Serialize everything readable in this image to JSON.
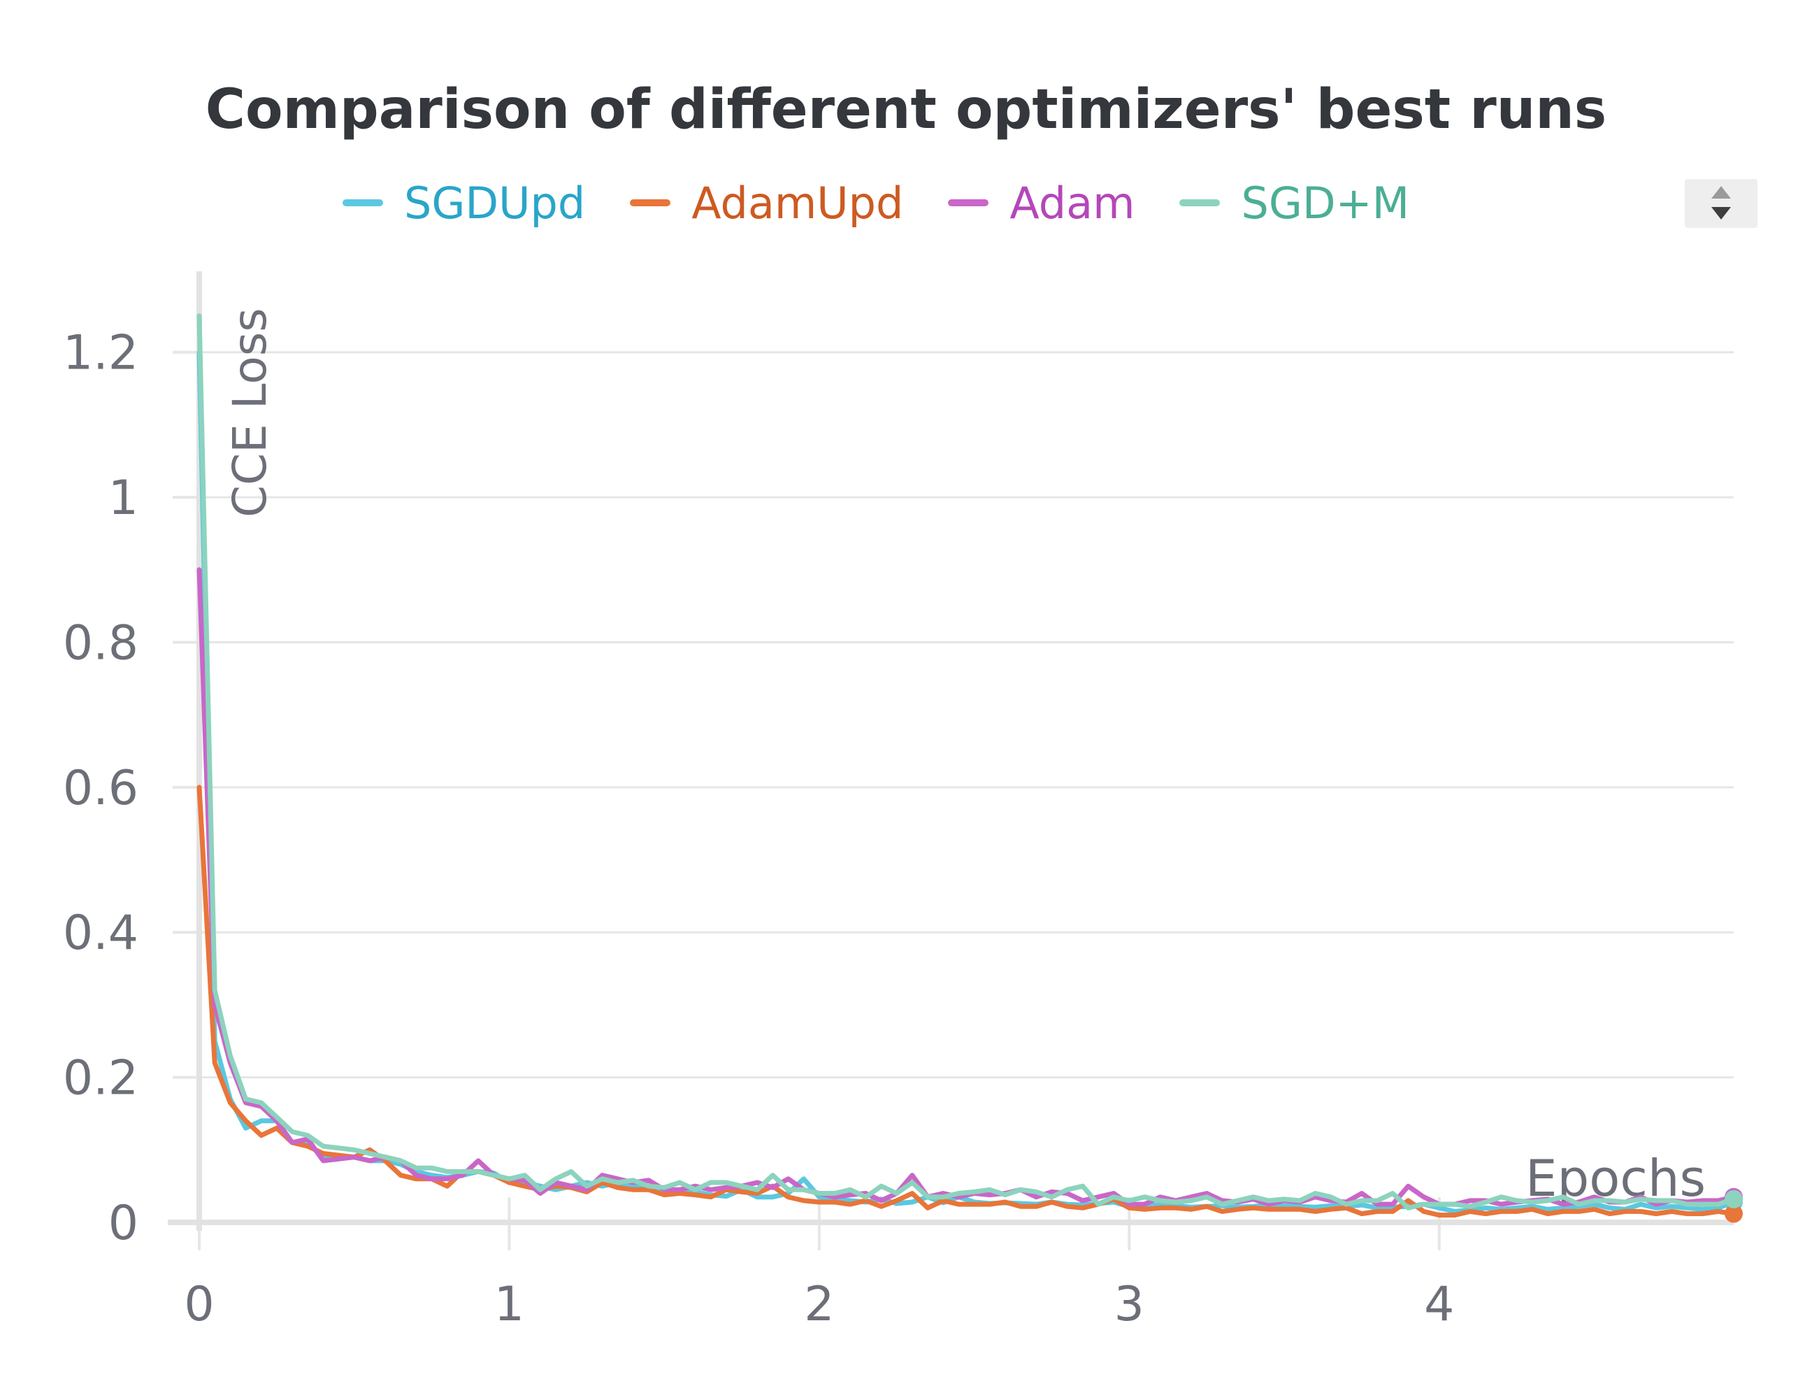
{
  "chart_data": {
    "type": "line",
    "title": "Comparison of different optimizers' best runs",
    "xlabel": "Epochs",
    "ylabel": "CCE Loss",
    "xlim": [
      0,
      4.95
    ],
    "ylim": [
      0,
      1.3
    ],
    "x_ticks": [
      "0",
      "1",
      "2",
      "3",
      "4"
    ],
    "y_ticks": [
      "0",
      "0.2",
      "0.4",
      "0.6",
      "0.8",
      "1",
      "1.2"
    ],
    "grid": true,
    "legend_position": "top",
    "x": [
      0.0,
      0.05,
      0.1,
      0.15,
      0.2,
      0.25,
      0.3,
      0.35,
      0.4,
      0.5,
      0.55,
      0.6,
      0.65,
      0.7,
      0.75,
      0.8,
      0.85,
      0.9,
      0.95,
      1.0,
      1.05,
      1.1,
      1.15,
      1.2,
      1.25,
      1.3,
      1.35,
      1.4,
      1.45,
      1.5,
      1.55,
      1.6,
      1.65,
      1.7,
      1.75,
      1.8,
      1.85,
      1.9,
      1.95,
      2.0,
      2.05,
      2.1,
      2.15,
      2.2,
      2.25,
      2.3,
      2.35,
      2.4,
      2.45,
      2.5,
      2.55,
      2.6,
      2.65,
      2.7,
      2.75,
      2.8,
      2.85,
      2.9,
      2.95,
      3.0,
      3.05,
      3.1,
      3.15,
      3.2,
      3.25,
      3.3,
      3.35,
      3.4,
      3.45,
      3.5,
      3.55,
      3.6,
      3.65,
      3.7,
      3.75,
      3.8,
      3.85,
      3.9,
      3.95,
      4.0,
      4.05,
      4.1,
      4.15,
      4.2,
      4.25,
      4.3,
      4.35,
      4.4,
      4.45,
      4.5,
      4.55,
      4.6,
      4.65,
      4.7,
      4.75,
      4.8,
      4.85,
      4.9,
      4.95
    ],
    "series": [
      {
        "name": "SGDUpd",
        "color": "#5bc8e0",
        "label_color": "#29a5c9",
        "values": [
          1.2,
          0.25,
          0.17,
          0.13,
          0.14,
          0.14,
          0.11,
          0.11,
          0.09,
          0.09,
          0.085,
          0.085,
          0.08,
          0.07,
          0.065,
          0.062,
          0.065,
          0.07,
          0.068,
          0.055,
          0.055,
          0.05,
          0.045,
          0.05,
          0.055,
          0.05,
          0.055,
          0.05,
          0.048,
          0.045,
          0.04,
          0.042,
          0.038,
          0.036,
          0.045,
          0.035,
          0.035,
          0.04,
          0.06,
          0.035,
          0.032,
          0.03,
          0.028,
          0.032,
          0.026,
          0.028,
          0.035,
          0.027,
          0.035,
          0.028,
          0.026,
          0.027,
          0.026,
          0.025,
          0.028,
          0.025,
          0.024,
          0.026,
          0.028,
          0.022,
          0.022,
          0.025,
          0.023,
          0.021,
          0.022,
          0.023,
          0.021,
          0.022,
          0.024,
          0.023,
          0.022,
          0.021,
          0.023,
          0.022,
          0.024,
          0.02,
          0.021,
          0.022,
          0.025,
          0.02,
          0.015,
          0.017,
          0.02,
          0.018,
          0.02,
          0.022,
          0.018,
          0.02,
          0.022,
          0.025,
          0.02,
          0.018,
          0.025,
          0.02,
          0.022,
          0.02,
          0.018,
          0.02,
          0.028
        ]
      },
      {
        "name": "AdamUpd",
        "color": "#e87539",
        "label_color": "#cd5a22",
        "values": [
          0.6,
          0.22,
          0.165,
          0.14,
          0.12,
          0.13,
          0.11,
          0.105,
          0.095,
          0.09,
          0.1,
          0.085,
          0.065,
          0.06,
          0.06,
          0.05,
          0.07,
          0.07,
          0.065,
          0.055,
          0.05,
          0.045,
          0.05,
          0.048,
          0.042,
          0.055,
          0.048,
          0.045,
          0.045,
          0.038,
          0.04,
          0.038,
          0.035,
          0.045,
          0.042,
          0.04,
          0.05,
          0.035,
          0.03,
          0.028,
          0.028,
          0.025,
          0.03,
          0.022,
          0.03,
          0.04,
          0.02,
          0.03,
          0.025,
          0.025,
          0.025,
          0.028,
          0.022,
          0.022,
          0.028,
          0.022,
          0.02,
          0.025,
          0.032,
          0.02,
          0.018,
          0.02,
          0.02,
          0.018,
          0.022,
          0.015,
          0.018,
          0.02,
          0.018,
          0.018,
          0.018,
          0.015,
          0.018,
          0.02,
          0.012,
          0.015,
          0.015,
          0.03,
          0.015,
          0.01,
          0.01,
          0.015,
          0.012,
          0.015,
          0.015,
          0.018,
          0.012,
          0.015,
          0.015,
          0.018,
          0.012,
          0.015,
          0.015,
          0.012,
          0.015,
          0.012,
          0.012,
          0.015,
          0.012
        ]
      },
      {
        "name": "Adam",
        "color": "#c966c9",
        "label_color": "#b447b9",
        "values": [
          0.9,
          0.3,
          0.22,
          0.165,
          0.16,
          0.14,
          0.11,
          0.115,
          0.085,
          0.09,
          0.085,
          0.09,
          0.085,
          0.065,
          0.06,
          0.06,
          0.065,
          0.085,
          0.065,
          0.06,
          0.058,
          0.04,
          0.055,
          0.05,
          0.045,
          0.065,
          0.06,
          0.055,
          0.058,
          0.045,
          0.045,
          0.05,
          0.045,
          0.048,
          0.05,
          0.055,
          0.048,
          0.06,
          0.045,
          0.04,
          0.035,
          0.038,
          0.04,
          0.03,
          0.04,
          0.065,
          0.035,
          0.04,
          0.035,
          0.04,
          0.038,
          0.04,
          0.045,
          0.035,
          0.042,
          0.04,
          0.03,
          0.035,
          0.04,
          0.025,
          0.025,
          0.035,
          0.03,
          0.035,
          0.04,
          0.03,
          0.028,
          0.032,
          0.025,
          0.03,
          0.028,
          0.035,
          0.03,
          0.028,
          0.04,
          0.025,
          0.025,
          0.05,
          0.035,
          0.025,
          0.025,
          0.03,
          0.03,
          0.025,
          0.028,
          0.03,
          0.032,
          0.025,
          0.028,
          0.035,
          0.028,
          0.028,
          0.035,
          0.025,
          0.03,
          0.028,
          0.03,
          0.03,
          0.035
        ]
      },
      {
        "name": "SGD+M",
        "color": "#8cd3be",
        "label_color": "#4bae95",
        "values": [
          1.25,
          0.32,
          0.23,
          0.17,
          0.165,
          0.145,
          0.125,
          0.12,
          0.105,
          0.1,
          0.095,
          0.09,
          0.085,
          0.075,
          0.075,
          0.07,
          0.07,
          0.07,
          0.065,
          0.06,
          0.065,
          0.045,
          0.06,
          0.07,
          0.05,
          0.06,
          0.055,
          0.058,
          0.05,
          0.048,
          0.055,
          0.045,
          0.055,
          0.055,
          0.05,
          0.045,
          0.065,
          0.045,
          0.045,
          0.04,
          0.04,
          0.045,
          0.035,
          0.05,
          0.04,
          0.055,
          0.035,
          0.035,
          0.04,
          0.042,
          0.045,
          0.038,
          0.045,
          0.042,
          0.035,
          0.045,
          0.05,
          0.025,
          0.035,
          0.03,
          0.035,
          0.03,
          0.028,
          0.03,
          0.035,
          0.025,
          0.03,
          0.035,
          0.03,
          0.032,
          0.03,
          0.04,
          0.035,
          0.025,
          0.03,
          0.03,
          0.04,
          0.02,
          0.025,
          0.025,
          0.025,
          0.022,
          0.028,
          0.035,
          0.03,
          0.028,
          0.03,
          0.035,
          0.025,
          0.03,
          0.03,
          0.028,
          0.032,
          0.03,
          0.03,
          0.025,
          0.025,
          0.025,
          0.032
        ]
      }
    ]
  }
}
